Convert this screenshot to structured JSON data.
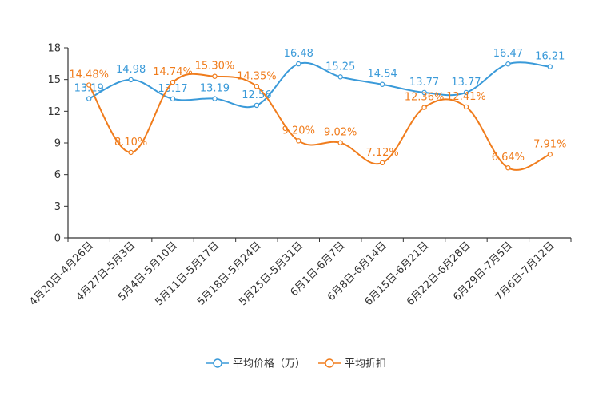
{
  "chart_data": {
    "type": "line",
    "title": "",
    "xlabel": "",
    "ylabel": "",
    "ylim": [
      0,
      18
    ],
    "yticks": [
      0,
      3,
      6,
      9,
      12,
      15,
      18
    ],
    "grid": false,
    "legend_position": "bottom-center",
    "categories": [
      "4月20日-4月26日",
      "4月27日-5月3日",
      "5月4日-5月10日",
      "5月11日-5月17日",
      "5月18日-5月24日",
      "5月25日-5月31日",
      "6月1日-6月7日",
      "6月8日-6月14日",
      "6月15日-6月21日",
      "6月22日-6月28日",
      "6月29日-7月5日",
      "7月6日-7月12日"
    ],
    "series": [
      {
        "name": "平均价格（万）",
        "color": "#3a9ad9",
        "values": [
          13.19,
          14.98,
          13.17,
          13.19,
          12.56,
          16.48,
          15.25,
          14.54,
          13.77,
          13.77,
          16.47,
          16.21
        ],
        "labels": [
          "13.19",
          "14.98",
          "13.17",
          "13.19",
          "12.56",
          "16.48",
          "15.25",
          "14.54",
          "13.77",
          "13.77",
          "16.47",
          "16.21"
        ]
      },
      {
        "name": "平均折扣",
        "color": "#f07c1c",
        "values": [
          14.48,
          8.1,
          14.74,
          15.3,
          14.35,
          9.2,
          9.02,
          7.12,
          12.36,
          12.41,
          6.64,
          7.91
        ],
        "labels": [
          "14.48%",
          "8.10%",
          "14.74%",
          "15.30%",
          "14.35%",
          "9.20%",
          "9.02%",
          "7.12%",
          "12.36%",
          "12.41%",
          "6.64%",
          "7.91%"
        ]
      }
    ]
  }
}
